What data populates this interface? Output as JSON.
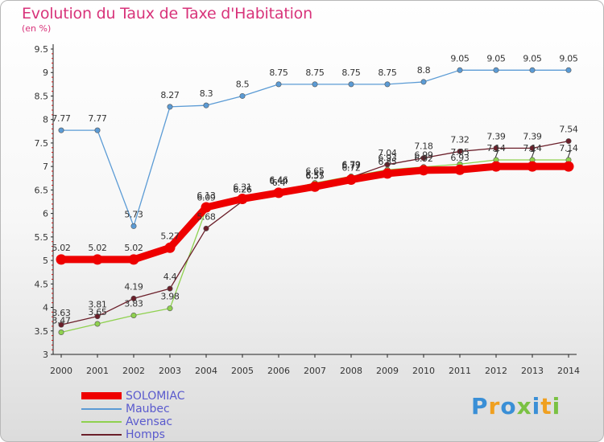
{
  "title": "Evolution du Taux de Taxe d'Habitation",
  "units_label": "(en %)",
  "brand": {
    "letters": [
      "P",
      "r",
      "o",
      "x",
      "i",
      "t",
      "i"
    ],
    "colors": [
      "#3a8fd6",
      "#f0a020",
      "#3a8fd6",
      "#7ac143",
      "#3a8fd6",
      "#f0a020",
      "#7ac143"
    ]
  },
  "chart_data": {
    "type": "line",
    "title": "Evolution du Taux de Taxe d'Habitation",
    "ylabel": "(en %)",
    "xlabel": "",
    "x": [
      "2000",
      "2001",
      "2002",
      "2003",
      "2004",
      "2005",
      "2006",
      "2007",
      "2008",
      "2009",
      "2010",
      "2011",
      "2012",
      "2013",
      "2014"
    ],
    "y_ticks": [
      "3",
      "3.5",
      "4",
      "4.5",
      "5",
      "5.5",
      "6",
      "6.5",
      "7",
      "7.5",
      "8",
      "8.5",
      "9",
      "9.5"
    ],
    "ylim": [
      3,
      9.5
    ],
    "grid": false,
    "legend_position": "bottom-left",
    "series": [
      {
        "name": "Maubec",
        "color": "#5b9bd5",
        "values": [
          7.77,
          7.77,
          5.73,
          8.27,
          8.3,
          8.5,
          8.75,
          8.75,
          8.75,
          8.75,
          8.8,
          9.05,
          9.05,
          9.05,
          9.05
        ],
        "labels": [
          "7.77",
          "7.77",
          "5.73",
          "8.27",
          "8.3",
          "8.5",
          "8.75",
          "8.75",
          "8.75",
          "8.75",
          "8.8",
          "9.05",
          "9.05",
          "9.05",
          "9.05"
        ]
      },
      {
        "name": "Avensac",
        "color": "#8fd14f",
        "values": [
          3.47,
          3.65,
          3.83,
          3.98,
          6.09,
          6.26,
          6.46,
          6.65,
          6.79,
          6.93,
          6.99,
          7.05,
          7.14,
          7.14,
          7.14
        ],
        "labels": [
          "3.47",
          "3.65",
          "3.83",
          "3.98",
          "6.09",
          "6.26",
          "6.46",
          "6.65",
          "6.79",
          "6.93",
          "6.99",
          "7.05",
          "7.14",
          "7.14",
          "7.14"
        ]
      },
      {
        "name": "Homps",
        "color": "#6b1f2a",
        "values": [
          3.63,
          3.81,
          4.19,
          4.4,
          5.68,
          6.26,
          6.4,
          6.55,
          6.77,
          7.04,
          7.18,
          7.32,
          7.39,
          7.39,
          7.54
        ],
        "labels": [
          "3.63",
          "3.81",
          "4.19",
          "4.4",
          "5.68",
          "6.26",
          "6.4",
          "6.55",
          "6.77",
          "7.04",
          "7.18",
          "7.32",
          "7.39",
          "7.39",
          "7.54"
        ]
      },
      {
        "name": "SOLOMIAC",
        "color": "#ee0000",
        "values": [
          5.02,
          5.02,
          5.02,
          5.27,
          6.13,
          6.31,
          6.44,
          6.57,
          6.72,
          6.85,
          6.92,
          6.93,
          7.0,
          7.0,
          7.0
        ],
        "labels": [
          "5.02",
          "5.02",
          "5.02",
          "5.27",
          "6.13",
          "6.31",
          "6.44",
          "6.57",
          "6.72",
          "6.85",
          "6.92",
          "6.93",
          "7",
          "7",
          "7"
        ]
      }
    ],
    "legend": [
      {
        "name": "SOLOMIAC",
        "color": "#ee0000",
        "text_color": "#5a5acd"
      },
      {
        "name": "Maubec",
        "color": "#5b9bd5",
        "text_color": "#5a5acd"
      },
      {
        "name": "Avensac",
        "color": "#8fd14f",
        "text_color": "#5a5acd"
      },
      {
        "name": "Homps",
        "color": "#6b1f2a",
        "text_color": "#5a5acd"
      }
    ]
  }
}
